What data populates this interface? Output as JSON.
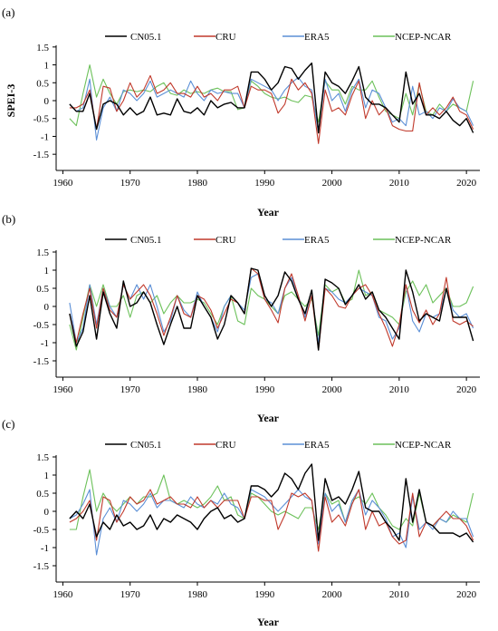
{
  "colors": {
    "CN05.1": "#000000",
    "CRU": "#c0392b",
    "ERA5": "#5b8fd6",
    "NCEP-NCAR": "#6cc15a"
  },
  "chart_data": [
    {
      "type": "line",
      "panel_label": "(a)",
      "xlabel": "Year",
      "ylabel": "SPEI-3",
      "xlim": [
        1959,
        2022
      ],
      "ylim": [
        -1.8,
        1.8
      ],
      "xticks": [
        1960,
        1970,
        1980,
        1990,
        2000,
        2010,
        2020
      ],
      "yticks": [
        1.5,
        1,
        0.5,
        0,
        -0.5,
        -1,
        -1.5
      ],
      "legend_position": "top",
      "x_start": 1961,
      "series": [
        {
          "name": "CN05.1",
          "values": [
            -0.1,
            -0.3,
            -0.3,
            0.2,
            -0.8,
            -0.1,
            0.0,
            -0.1,
            -0.4,
            -0.2,
            -0.4,
            -0.3,
            0.1,
            -0.4,
            -0.35,
            -0.4,
            0.05,
            -0.3,
            -0.35,
            -0.2,
            -0.4,
            0.0,
            -0.2,
            -0.1,
            -0.05,
            -0.2,
            -0.2,
            0.8,
            0.8,
            0.6,
            0.3,
            0.5,
            0.95,
            0.9,
            0.6,
            0.85,
            1.05,
            -0.9,
            0.8,
            0.5,
            0.4,
            0.2,
            0.55,
            0.95,
            0.1,
            -0.1,
            -0.1,
            -0.2,
            -0.4,
            -0.6,
            0.8,
            -0.1,
            0.2,
            -0.4,
            -0.4,
            -0.5,
            -0.3,
            -0.55,
            -0.7,
            -0.5,
            -0.9
          ]
        },
        {
          "name": "CRU",
          "values": [
            -0.2,
            -0.2,
            -0.1,
            0.3,
            -0.8,
            0.4,
            0.35,
            -0.3,
            0.0,
            0.5,
            0.1,
            0.3,
            0.7,
            0.2,
            0.3,
            0.5,
            0.2,
            0.2,
            0.1,
            0.4,
            0.1,
            0.2,
            0.0,
            0.3,
            0.3,
            0.4,
            -0.2,
            0.4,
            0.3,
            0.3,
            0.2,
            -0.35,
            -0.1,
            0.6,
            0.3,
            0.5,
            0.2,
            -1.2,
            0.3,
            -0.3,
            -0.2,
            -0.4,
            0.15,
            0.55,
            -0.5,
            0.0,
            -0.4,
            -0.2,
            -0.7,
            -0.8,
            -0.85,
            -0.85,
            0.5,
            -0.4,
            -0.2,
            -0.4,
            -0.2,
            0.1,
            -0.3,
            -0.4,
            -0.8
          ]
        },
        {
          "name": "ERA5",
          "values": [
            -0.1,
            -0.3,
            -0.2,
            0.6,
            -1.1,
            -0.2,
            0.1,
            -0.3,
            0.3,
            0.2,
            0.0,
            0.2,
            0.55,
            0.1,
            0.2,
            0.3,
            0.2,
            0.1,
            0.55,
            0.2,
            0.0,
            0.3,
            0.2,
            0.25,
            0.2,
            0.2,
            -0.2,
            0.6,
            0.5,
            0.4,
            0.3,
            0.0,
            0.3,
            0.5,
            0.65,
            0.4,
            0.3,
            -0.9,
            0.6,
            0.0,
            0.2,
            -0.3,
            0.3,
            0.6,
            -0.2,
            0.3,
            0.2,
            -0.2,
            -0.6,
            -0.5,
            -0.7,
            0.4,
            -0.4,
            -0.3,
            -0.5,
            -0.2,
            -0.3,
            0.05,
            -0.2,
            -0.3,
            -0.7
          ]
        },
        {
          "name": "NCEP-NCAR",
          "values": [
            -0.5,
            -0.7,
            0.2,
            1.0,
            0.1,
            0.6,
            0.2,
            -0.1,
            0.25,
            0.3,
            0.25,
            0.3,
            0.25,
            0.4,
            0.5,
            0.2,
            0.15,
            0.3,
            0.2,
            0.25,
            0.2,
            0.3,
            0.35,
            0.25,
            0.25,
            -0.25,
            -0.2,
            0.55,
            0.4,
            0.2,
            0.1,
            0.05,
            0.1,
            0.0,
            -0.05,
            0.15,
            0.1,
            -0.6,
            0.55,
            0.3,
            0.3,
            -0.1,
            0.4,
            0.3,
            0.3,
            0.55,
            0.1,
            -0.3,
            -0.4,
            -0.5,
            0.2,
            -0.4,
            0.45,
            -0.3,
            -0.4,
            -0.1,
            -0.3,
            -0.1,
            -0.2,
            -0.3,
            0.55
          ]
        }
      ]
    },
    {
      "type": "line",
      "panel_label": "(b)",
      "xlabel": "Year",
      "ylabel": "",
      "xlim": [
        1959,
        2022
      ],
      "ylim": [
        -1.8,
        1.8
      ],
      "xticks": [
        1960,
        1970,
        1980,
        1990,
        2000,
        2010,
        2020
      ],
      "yticks": [
        1.5,
        1,
        0.5,
        0,
        -0.5,
        -1,
        -1.5
      ],
      "legend_position": "top",
      "x_start": 1961,
      "series": [
        {
          "name": "CN05.1",
          "values": [
            -0.2,
            -1.1,
            -0.7,
            0.3,
            -0.9,
            0.4,
            -0.2,
            -0.6,
            0.7,
            0.0,
            0.1,
            0.4,
            0.1,
            -0.5,
            -1.05,
            -0.5,
            0.0,
            -0.6,
            -0.6,
            0.3,
            0.0,
            -0.3,
            -0.9,
            -0.5,
            0.3,
            0.1,
            -0.2,
            1.05,
            1.0,
            0.3,
            0.0,
            0.3,
            0.95,
            0.7,
            0.2,
            -0.2,
            0.45,
            -1.2,
            0.75,
            0.65,
            0.5,
            0.05,
            0.3,
            0.6,
            0.2,
            0.4,
            -0.1,
            -0.3,
            -0.6,
            -0.9,
            1.0,
            0.4,
            -0.4,
            -0.2,
            -0.3,
            -0.4,
            0.5,
            -0.3,
            -0.3,
            -0.3,
            -0.95
          ]
        },
        {
          "name": "CRU",
          "values": [
            -0.2,
            -1.0,
            -0.2,
            0.5,
            -0.6,
            0.5,
            -0.1,
            -0.3,
            0.6,
            0.2,
            0.4,
            0.6,
            0.3,
            -0.2,
            -0.8,
            -0.3,
            0.3,
            -0.2,
            -0.3,
            0.3,
            0.2,
            -0.1,
            -0.6,
            -0.2,
            0.2,
            0.1,
            -0.2,
            1.05,
            0.9,
            0.2,
            -0.1,
            -0.45,
            0.5,
            0.9,
            0.3,
            -0.4,
            0.3,
            -1.2,
            0.5,
            0.3,
            0.0,
            -0.05,
            0.3,
            0.5,
            0.6,
            0.3,
            -0.2,
            -0.6,
            -1.1,
            -0.5,
            0.6,
            -0.1,
            -0.45,
            -0.1,
            -0.5,
            -0.2,
            0.8,
            -0.4,
            -0.5,
            -0.4,
            -0.55
          ]
        },
        {
          "name": "ERA5",
          "values": [
            0.1,
            -1.0,
            -0.6,
            0.6,
            -0.5,
            0.5,
            0.0,
            -0.3,
            0.6,
            0.2,
            0.6,
            0.2,
            0.6,
            0.0,
            -0.7,
            -0.4,
            0.3,
            -0.1,
            -0.3,
            0.4,
            0.0,
            -0.3,
            -0.7,
            0.0,
            0.3,
            0.1,
            -0.1,
            0.8,
            0.9,
            0.2,
            0.1,
            -0.2,
            0.5,
            0.8,
            0.3,
            -0.3,
            0.3,
            -1.0,
            0.5,
            0.4,
            0.2,
            0.1,
            0.3,
            0.5,
            0.4,
            0.3,
            -0.3,
            -0.4,
            -0.9,
            -0.6,
            0.6,
            -0.4,
            -0.7,
            -0.2,
            -0.3,
            -0.2,
            0.5,
            -0.1,
            -0.3,
            -0.2,
            -0.6
          ]
        },
        {
          "name": "NCEP-NCAR",
          "values": [
            -0.5,
            -1.2,
            -0.3,
            0.6,
            0.0,
            0.6,
            0.0,
            0.0,
            0.3,
            -0.3,
            0.3,
            0.4,
            0.1,
            0.3,
            -0.2,
            0.1,
            0.3,
            0.1,
            0.1,
            0.2,
            0.1,
            -0.2,
            -0.5,
            0.0,
            0.3,
            -0.4,
            -0.5,
            0.5,
            0.3,
            0.2,
            0.0,
            -0.2,
            0.3,
            0.4,
            0.2,
            0.0,
            0.2,
            -0.8,
            0.6,
            0.4,
            0.5,
            0.1,
            0.2,
            1.0,
            0.3,
            0.4,
            -0.1,
            -0.2,
            -0.3,
            -0.5,
            0.4,
            0.7,
            0.3,
            0.6,
            0.1,
            0.3,
            0.5,
            0.0,
            0.0,
            0.1,
            0.55
          ]
        }
      ]
    },
    {
      "type": "line",
      "panel_label": "(c)",
      "xlabel": "Year",
      "ylabel": "",
      "xlim": [
        1959,
        2022
      ],
      "ylim": [
        -1.8,
        1.8
      ],
      "xticks": [
        1960,
        1970,
        1980,
        1990,
        2000,
        2010,
        2020
      ],
      "yticks": [
        1.5,
        1,
        0.5,
        0,
        -0.5,
        -1,
        -1.5
      ],
      "legend_position": "top",
      "x_start": 1961,
      "series": [
        {
          "name": "CN05.1",
          "values": [
            -0.2,
            0.0,
            -0.2,
            0.2,
            -0.7,
            -0.3,
            -0.5,
            -0.1,
            -0.4,
            -0.3,
            -0.5,
            -0.4,
            -0.1,
            -0.5,
            -0.2,
            -0.3,
            -0.1,
            -0.2,
            -0.3,
            -0.5,
            -0.2,
            0.0,
            0.1,
            -0.2,
            -0.1,
            -0.3,
            -0.2,
            0.7,
            0.7,
            0.6,
            0.4,
            0.6,
            1.05,
            0.9,
            0.6,
            1.05,
            1.3,
            -0.8,
            0.9,
            0.3,
            0.4,
            0.2,
            0.6,
            1.1,
            0.1,
            0.0,
            0.0,
            -0.3,
            -0.5,
            -0.8,
            0.9,
            -0.3,
            0.6,
            -0.3,
            -0.4,
            -0.6,
            -0.6,
            -0.6,
            -0.7,
            -0.6,
            -0.85
          ]
        },
        {
          "name": "CRU",
          "values": [
            -0.3,
            -0.2,
            0.0,
            0.3,
            -0.8,
            0.4,
            0.3,
            -0.3,
            0.0,
            0.4,
            0.2,
            0.3,
            0.6,
            0.2,
            0.3,
            0.4,
            0.2,
            0.2,
            0.1,
            0.4,
            0.1,
            0.3,
            0.1,
            0.3,
            0.3,
            0.3,
            -0.2,
            0.4,
            0.4,
            0.3,
            0.3,
            -0.5,
            -0.1,
            0.5,
            0.4,
            0.5,
            0.3,
            -1.1,
            0.4,
            -0.3,
            -0.1,
            -0.4,
            0.2,
            0.6,
            -0.5,
            0.0,
            -0.4,
            -0.3,
            -0.7,
            -0.9,
            -0.8,
            0.5,
            -0.7,
            -0.3,
            -0.4,
            -0.2,
            0.0,
            -0.2,
            -0.2,
            -0.4,
            -0.8
          ]
        },
        {
          "name": "ERA5",
          "values": [
            -0.2,
            -0.1,
            0.2,
            0.6,
            -1.2,
            -0.2,
            0.1,
            -0.3,
            0.3,
            0.2,
            0.0,
            0.2,
            0.5,
            0.1,
            0.3,
            0.3,
            0.2,
            0.1,
            0.4,
            0.2,
            0.1,
            0.3,
            0.2,
            0.5,
            0.2,
            0.1,
            -0.2,
            0.6,
            0.5,
            0.4,
            0.2,
            0.0,
            0.2,
            0.4,
            0.6,
            0.4,
            0.3,
            -0.9,
            0.5,
            0.0,
            0.2,
            -0.3,
            0.3,
            0.6,
            -0.1,
            0.3,
            0.1,
            -0.2,
            -0.7,
            -0.6,
            -1.0,
            0.4,
            -0.5,
            -0.3,
            -0.5,
            -0.2,
            -0.3,
            0.0,
            -0.2,
            -0.2,
            -0.7
          ]
        },
        {
          "name": "NCEP-NCAR",
          "values": [
            -0.5,
            -0.5,
            0.4,
            1.15,
            0.0,
            0.5,
            0.2,
            0.0,
            0.2,
            0.4,
            0.2,
            0.4,
            0.4,
            0.5,
            1.0,
            0.3,
            0.2,
            0.3,
            0.2,
            0.1,
            0.2,
            0.4,
            0.7,
            0.3,
            0.4,
            -0.1,
            -0.2,
            0.5,
            0.4,
            0.2,
            0.0,
            -0.1,
            0.0,
            -0.1,
            -0.2,
            0.1,
            0.1,
            -0.5,
            0.5,
            0.2,
            0.3,
            -0.3,
            0.3,
            0.4,
            0.2,
            0.5,
            0.1,
            -0.1,
            -0.4,
            -0.5,
            -0.2,
            -0.4,
            0.5,
            -0.3,
            -0.4,
            -0.2,
            -0.3,
            -0.1,
            -0.2,
            -0.3,
            0.5
          ]
        }
      ]
    }
  ]
}
